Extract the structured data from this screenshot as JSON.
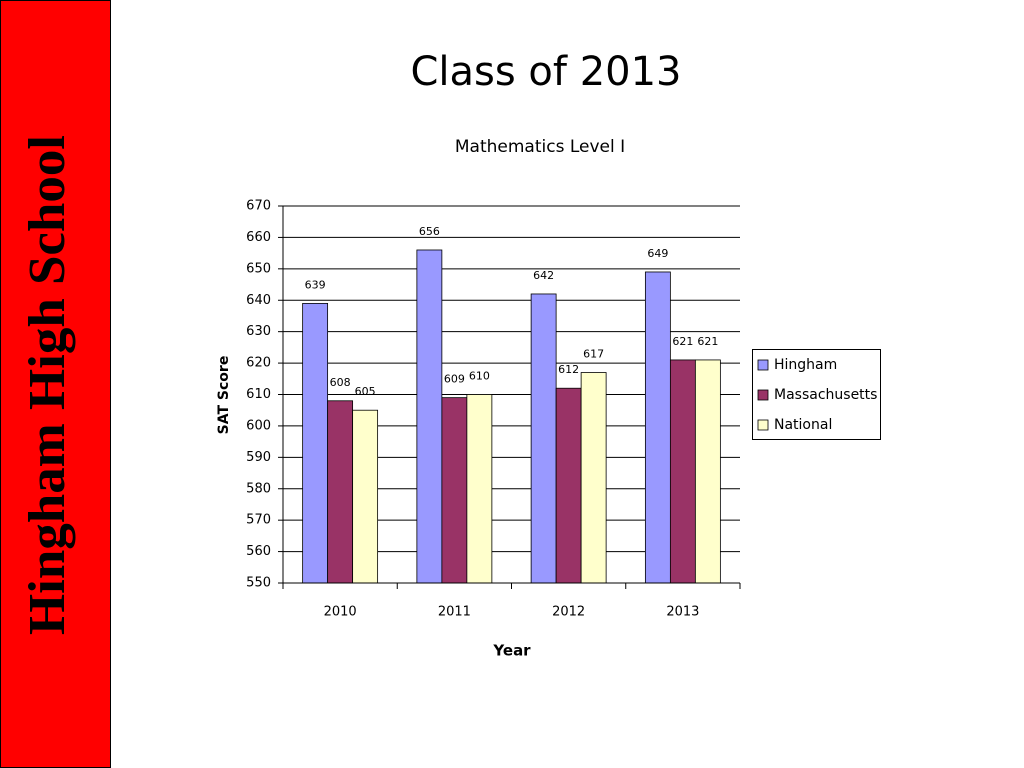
{
  "sidebar": "Hingham High School",
  "slide_title": "Class of 2013",
  "chart_data": {
    "type": "bar",
    "title": "Mathematics Level I",
    "x_label": "Year",
    "y_label": "SAT Score",
    "categories": [
      "2010",
      "2011",
      "2012",
      "2013"
    ],
    "series": [
      {
        "name": "Hingham",
        "color": "#9999ff",
        "values": [
          639,
          656,
          642,
          649
        ]
      },
      {
        "name": "Massachusetts",
        "color": "#993366",
        "values": [
          608,
          609,
          612,
          621
        ]
      },
      {
        "name": "National",
        "color": "#ffffcc",
        "values": [
          605,
          610,
          617,
          621
        ]
      }
    ],
    "ylim": [
      550,
      670
    ],
    "yticks": [
      550,
      560,
      570,
      580,
      590,
      600,
      610,
      620,
      630,
      640,
      650,
      660,
      670
    ],
    "grid": true,
    "legend": "right"
  }
}
